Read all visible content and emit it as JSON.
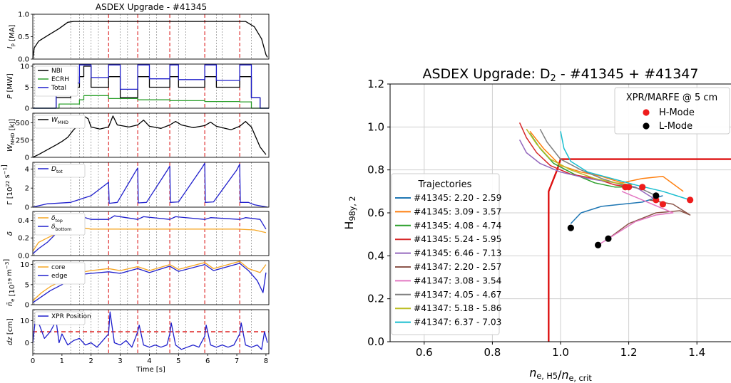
{
  "figure": {
    "left_title": "ASDEX Upgrade - #41345"
  },
  "chart_data": [
    {
      "type": "line",
      "panel": "Ip",
      "ylabel": "I_p [MA]",
      "ylim": [
        0,
        1
      ],
      "yticks": [
        "0.0",
        "0.5",
        "1.0"
      ],
      "x": [
        0,
        0.05,
        0.2,
        0.5,
        0.9,
        1.2,
        1.4,
        2,
        3,
        4,
        5,
        6,
        7,
        7.3,
        7.6,
        7.85,
        8.0,
        8.05
      ],
      "values": [
        0,
        0.25,
        0.4,
        0.52,
        0.68,
        0.82,
        0.84,
        0.84,
        0.84,
        0.84,
        0.84,
        0.84,
        0.84,
        0.84,
        0.72,
        0.45,
        0.1,
        0.04
      ]
    },
    {
      "type": "line",
      "panel": "P",
      "ylabel": "P [MW]",
      "ylim": [
        0,
        10.5
      ],
      "yticks": [
        "0",
        "5",
        "10"
      ],
      "legend": [
        "NBI",
        "ECRH",
        "Total"
      ],
      "series": [
        {
          "name": "NBI",
          "color": "#000000",
          "x": [
            0,
            0.8,
            0.8,
            1.3,
            1.3,
            1.6,
            1.6,
            1.75,
            1.75,
            2.0,
            2.0,
            2.6,
            2.6,
            3.0,
            3.0,
            3.6,
            3.6,
            4.0,
            4.0,
            4.7,
            4.7,
            5.0,
            5.0,
            5.9,
            5.9,
            6.3,
            6.3,
            7.1,
            7.1,
            7.5,
            7.5,
            7.8,
            7.8,
            8.1
          ],
          "values": [
            0,
            0,
            2.5,
            2.5,
            5,
            5,
            7.5,
            7.5,
            10,
            10,
            5,
            5,
            7.5,
            7.5,
            2.5,
            2.5,
            7.5,
            7.5,
            5,
            5,
            7.5,
            7.5,
            5,
            5,
            7.5,
            7.5,
            5,
            5,
            7.5,
            7.5,
            2.5,
            2.5,
            0,
            0
          ]
        },
        {
          "name": "ECRH",
          "color": "#2ca02c",
          "x": [
            0,
            0.9,
            0.9,
            1.6,
            1.6,
            1.75,
            1.75,
            2.6,
            2.6,
            3.6,
            3.6,
            4.7,
            4.7,
            5.9,
            5.9,
            7.1,
            7.1,
            7.5,
            7.5,
            8.1
          ],
          "values": [
            0,
            0,
            1,
            1,
            2,
            2,
            3,
            3,
            2.3,
            2.3,
            2,
            2,
            1.8,
            1.8,
            1.6,
            1.6,
            1.5,
            1.5,
            0,
            0
          ]
        },
        {
          "name": "Total",
          "color": "#1f1fcc",
          "x": [
            0,
            0.8,
            0.8,
            1.3,
            1.3,
            1.6,
            1.6,
            1.75,
            1.75,
            2.0,
            2.0,
            2.6,
            2.6,
            3.0,
            3.0,
            3.6,
            3.6,
            4.0,
            4.0,
            4.7,
            4.7,
            5.0,
            5.0,
            5.9,
            5.9,
            6.3,
            6.3,
            7.1,
            7.1,
            7.5,
            7.5,
            7.8,
            7.8,
            8.1
          ],
          "values": [
            0,
            0,
            3.5,
            3.5,
            6,
            6,
            10.3,
            10.3,
            10.3,
            10.3,
            7.3,
            7.3,
            10.3,
            10.3,
            4.5,
            4.5,
            10.3,
            10.3,
            7,
            7,
            10.3,
            10.3,
            6.8,
            6.8,
            10.3,
            10.3,
            6.6,
            6.6,
            10.3,
            10.3,
            2.5,
            2.5,
            0,
            0
          ]
        }
      ]
    },
    {
      "type": "line",
      "panel": "WMHD",
      "ylabel": "W_MHD [kJ]",
      "ylim": [
        0,
        640
      ],
      "yticks": [
        "0",
        "250",
        "500"
      ],
      "legend": [
        "W_MHD"
      ],
      "series": [
        {
          "name": "W_MHD",
          "color": "#000000",
          "x": [
            0,
            0.2,
            0.5,
            0.8,
            1.0,
            1.2,
            1.4,
            1.6,
            1.75,
            1.9,
            2.0,
            2.3,
            2.6,
            2.75,
            2.9,
            3.3,
            3.6,
            3.8,
            4.0,
            4.4,
            4.7,
            4.9,
            5.1,
            5.5,
            5.9,
            6.1,
            6.3,
            6.8,
            7.1,
            7.3,
            7.5,
            7.8,
            8.0
          ],
          "values": [
            0,
            40,
            110,
            180,
            230,
            290,
            400,
            480,
            600,
            560,
            440,
            410,
            440,
            600,
            470,
            440,
            470,
            540,
            450,
            420,
            470,
            520,
            470,
            430,
            460,
            510,
            450,
            400,
            450,
            520,
            440,
            150,
            40
          ]
        }
      ]
    },
    {
      "type": "line",
      "panel": "Gamma",
      "ylabel": "Γ [10^22 s^-1]",
      "ylim": [
        0,
        4.7
      ],
      "yticks": [
        "0",
        "2",
        "4"
      ],
      "legend": [
        "D_tot"
      ],
      "series": [
        {
          "name": "D_tot",
          "color": "#1f1fcc",
          "x": [
            0,
            0.2,
            0.5,
            1.3,
            2.0,
            2.6,
            2.62,
            2.9,
            3.5,
            3.6,
            3.62,
            3.9,
            4.6,
            4.7,
            4.72,
            5.0,
            5.8,
            5.9,
            5.92,
            6.2,
            7.0,
            7.1,
            7.12,
            7.4,
            7.6,
            8.05
          ],
          "values": [
            0,
            0.15,
            0.35,
            0.5,
            1.2,
            2.6,
            0.4,
            0.5,
            3.6,
            4.1,
            0.45,
            0.5,
            3.8,
            4.3,
            0.5,
            0.55,
            4.1,
            4.6,
            0.5,
            0.55,
            3.9,
            4.5,
            0.5,
            0.5,
            0.25,
            0
          ]
        }
      ]
    },
    {
      "type": "line",
      "panel": "delta",
      "ylabel": "δ",
      "ylim": [
        0,
        0.5
      ],
      "yticks": [
        "0.0",
        "0.2",
        "0.4"
      ],
      "legend": [
        "δ_top",
        "δ_bottom"
      ],
      "series": [
        {
          "name": "δ_top",
          "color": "#f5a623",
          "x": [
            0,
            0.2,
            0.5,
            1.0,
            1.3,
            1.6,
            2.0,
            3.0,
            4.0,
            5.0,
            6.0,
            7.0,
            7.6,
            8.0
          ],
          "values": [
            0.05,
            0.15,
            0.2,
            0.28,
            0.3,
            0.32,
            0.3,
            0.3,
            0.3,
            0.3,
            0.3,
            0.3,
            0.29,
            0.26
          ]
        },
        {
          "name": "δ_bottom",
          "color": "#1f1fcc",
          "x": [
            0,
            0.2,
            0.5,
            0.8,
            1.0,
            1.3,
            1.5,
            1.6,
            1.8,
            2.0,
            2.6,
            2.8,
            3.6,
            3.8,
            4.7,
            4.9,
            5.9,
            6.1,
            7.1,
            7.3,
            7.8,
            8.0
          ],
          "values": [
            0.02,
            0.08,
            0.15,
            0.25,
            0.33,
            0.37,
            0.4,
            0.45,
            0.43,
            0.41,
            0.41,
            0.45,
            0.41,
            0.44,
            0.41,
            0.44,
            0.41,
            0.43,
            0.41,
            0.43,
            0.41,
            0.3
          ]
        }
      ]
    },
    {
      "type": "line",
      "panel": "ne",
      "ylabel": "n̄_e [10^19 m^-3]",
      "ylim": [
        0,
        11
      ],
      "yticks": [
        "0",
        "5",
        "10"
      ],
      "legend": [
        "core",
        "edge"
      ],
      "series": [
        {
          "name": "core",
          "color": "#f5a623",
          "x": [
            0,
            0.3,
            0.6,
            1.0,
            1.3,
            1.6,
            2.0,
            2.6,
            3.0,
            3.6,
            4.0,
            4.7,
            5.0,
            5.9,
            6.2,
            7.1,
            7.4,
            7.8,
            8.0
          ],
          "values": [
            1,
            3,
            4.5,
            6,
            7,
            8,
            8.5,
            9,
            8.5,
            9.5,
            8.5,
            10,
            8.8,
            10.5,
            9,
            10.8,
            9,
            8,
            10
          ]
        },
        {
          "name": "edge",
          "color": "#1f1fcc",
          "x": [
            0,
            0.3,
            0.6,
            1.0,
            1.3,
            1.6,
            2.0,
            2.6,
            3.0,
            3.6,
            4.0,
            4.7,
            5.0,
            5.9,
            6.2,
            7.1,
            7.4,
            7.7,
            7.9,
            8.0
          ],
          "values": [
            0.5,
            2,
            3.5,
            5,
            6.5,
            7.5,
            7.8,
            8.2,
            7.8,
            9,
            8,
            9.6,
            8.3,
            10,
            8.5,
            10.3,
            8.5,
            6,
            3,
            8
          ]
        }
      ]
    },
    {
      "type": "line",
      "panel": "dz",
      "ylabel": "dz [cm]",
      "xlabel": "Time [s]",
      "ylim": [
        -5,
        15
      ],
      "yticks": [
        "0",
        "10"
      ],
      "xlim": [
        0,
        8.1
      ],
      "xticks": [
        "0",
        "1",
        "2",
        "3",
        "4",
        "5",
        "6",
        "7",
        "8"
      ],
      "legend": [
        "XPR Position"
      ],
      "reference_line": {
        "y": 5,
        "color": "#dd2222"
      },
      "series": [
        {
          "name": "XPR Position",
          "color": "#1f1fcc",
          "x": [
            0,
            0.1,
            0.2,
            0.4,
            0.6,
            0.8,
            0.9,
            1.0,
            1.2,
            1.4,
            1.6,
            1.8,
            2.0,
            2.2,
            2.4,
            2.6,
            2.65,
            2.8,
            3.0,
            3.2,
            3.4,
            3.6,
            3.65,
            3.8,
            4.0,
            4.2,
            4.4,
            4.6,
            4.7,
            4.75,
            4.9,
            5.1,
            5.3,
            5.5,
            5.7,
            5.9,
            5.95,
            6.1,
            6.3,
            6.5,
            6.7,
            6.9,
            7.1,
            7.15,
            7.3,
            7.5,
            7.7,
            7.85,
            7.95,
            8.05
          ],
          "values": [
            0,
            12,
            9,
            2,
            5,
            10,
            0,
            4,
            -1,
            1,
            2,
            -1,
            0,
            -2,
            1,
            4,
            14,
            0,
            -1,
            1,
            -2,
            5,
            8,
            -1,
            -2,
            -1,
            -2,
            -1,
            4,
            9,
            -1,
            -3,
            -2,
            -1,
            -2,
            3,
            8,
            -1,
            -2,
            -1,
            -2,
            -1,
            4,
            9,
            -1,
            -2,
            -1,
            -3,
            5,
            0
          ]
        }
      ]
    },
    {
      "type": "scatter",
      "title": "ASDEX Upgrade: D",
      "title_sub": "2",
      "title_rest": " - #41345 + #41347",
      "xlabel": "n_e, H5 / n_e, crit",
      "ylabel": "H_98y, 2",
      "xlim": [
        0.5,
        1.5
      ],
      "ylim": [
        0,
        1.2
      ],
      "xticks": [
        "0.6",
        "0.8",
        "1.0",
        "1.2",
        "1.4"
      ],
      "yticks": [
        "0.0",
        "0.2",
        "0.4",
        "0.6",
        "0.8",
        "1.0",
        "1.2"
      ],
      "grid": true,
      "boundary_color": "#dd1111",
      "boundary": {
        "x": [
          0.965,
          0.965,
          0.99,
          1.0,
          1.02,
          1.5
        ],
        "y": [
          0,
          0.7,
          0.8,
          0.85,
          0.85,
          0.85
        ]
      },
      "legend_title": "Trajectories",
      "legend_placement": "lower-left",
      "markers_title": "XPR/MARFE @ 5 cm",
      "markers_placement": "top-right",
      "h_mode_label": "H-Mode",
      "l_mode_label": "L-Mode",
      "h_mode_color": "#ee1c1c",
      "l_mode_color": "#000000",
      "series": [
        {
          "name": "#41345:  2.20 -  2.59",
          "color": "#1f77b4",
          "x": [
            1.03,
            1.06,
            1.12,
            1.18,
            1.24,
            1.28,
            1.3
          ],
          "y": [
            0.55,
            0.6,
            0.63,
            0.64,
            0.65,
            0.67,
            0.68
          ]
        },
        {
          "name": "#41345:  3.09 -  3.57",
          "color": "#ff7f0e",
          "x": [
            0.91,
            0.95,
            1.0,
            1.06,
            1.12,
            1.18,
            1.24,
            1.3,
            1.36
          ],
          "y": [
            0.98,
            0.9,
            0.82,
            0.79,
            0.77,
            0.74,
            0.76,
            0.77,
            0.7
          ]
        },
        {
          "name": "#41345:  4.08 -  4.74",
          "color": "#2ca02c",
          "x": [
            0.91,
            0.94,
            0.98,
            1.04,
            1.1,
            1.16,
            1.21
          ],
          "y": [
            0.97,
            0.9,
            0.83,
            0.78,
            0.74,
            0.72,
            0.72
          ]
        },
        {
          "name": "#41345:  5.24 -  5.95",
          "color": "#d62728",
          "x": [
            0.88,
            0.9,
            0.93,
            0.97,
            1.03,
            1.1,
            1.16,
            1.2
          ],
          "y": [
            1.02,
            0.95,
            0.88,
            0.82,
            0.78,
            0.76,
            0.73,
            0.72
          ]
        },
        {
          "name": "#41345:  6.46 -  7.13",
          "color": "#9467bd",
          "x": [
            0.88,
            0.9,
            0.94,
            1.0,
            1.08,
            1.16,
            1.22,
            1.28
          ],
          "y": [
            0.94,
            0.88,
            0.83,
            0.79,
            0.76,
            0.74,
            0.72,
            0.66
          ]
        },
        {
          "name": "#41347:  2.20 -  2.57",
          "color": "#8c564b",
          "x": [
            1.14,
            1.2,
            1.28,
            1.35,
            1.38,
            1.33,
            1.26
          ],
          "y": [
            0.48,
            0.55,
            0.6,
            0.61,
            0.59,
            0.64,
            0.66
          ]
        },
        {
          "name": "#41347:  3.08 -  3.54",
          "color": "#e377c2",
          "x": [
            1.11,
            1.16,
            1.22,
            1.28,
            1.33,
            1.3,
            1.24,
            1.18
          ],
          "y": [
            0.45,
            0.5,
            0.56,
            0.59,
            0.6,
            0.62,
            0.66,
            0.7
          ]
        },
        {
          "name": "#41347:  4.05 -  4.67",
          "color": "#7f7f7f",
          "x": [
            0.94,
            0.96,
            1.0,
            1.06,
            1.12,
            1.18,
            1.24,
            1.28
          ],
          "y": [
            0.99,
            0.93,
            0.85,
            0.8,
            0.76,
            0.73,
            0.71,
            0.68
          ]
        },
        {
          "name": "#41347:  5.18 -  5.86",
          "color": "#bcbd22",
          "x": [
            0.9,
            0.93,
            0.97,
            1.03,
            1.1,
            1.16,
            1.21
          ],
          "y": [
            0.99,
            0.92,
            0.85,
            0.8,
            0.76,
            0.74,
            0.73
          ]
        },
        {
          "name": "#41347:  6.37 -  7.03",
          "color": "#17becf",
          "x": [
            1.0,
            1.01,
            1.03,
            1.08,
            1.15,
            1.22,
            1.3,
            1.38
          ],
          "y": [
            0.98,
            0.9,
            0.84,
            0.79,
            0.76,
            0.73,
            0.7,
            0.66
          ]
        }
      ],
      "h_mode_points": {
        "x": [
          1.19,
          1.2,
          1.24,
          1.28,
          1.3,
          1.38
        ],
        "y": [
          0.72,
          0.72,
          0.72,
          0.66,
          0.64,
          0.66
        ]
      },
      "l_mode_points": {
        "x": [
          1.03,
          1.11,
          1.14,
          1.28
        ],
        "y": [
          0.53,
          0.45,
          0.48,
          0.68
        ]
      }
    }
  ]
}
